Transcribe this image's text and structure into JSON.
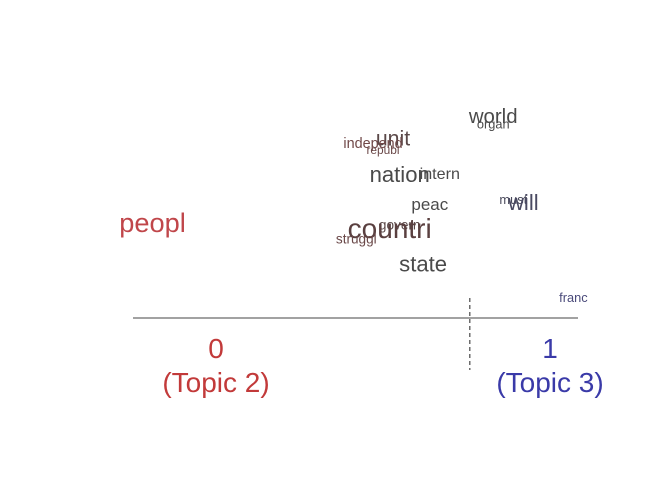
{
  "chart_data": {
    "type": "scatter",
    "title": "",
    "xlabel": "",
    "ylabel": "",
    "xlim": [
      0,
      1
    ],
    "axis": {
      "left_value": "0",
      "left_label": "(Topic 2)",
      "right_value": "1",
      "right_label": "(Topic 3)"
    },
    "reference_x": 0.76,
    "colors": {
      "low": "#c23a3a",
      "high": "#3a3aa8",
      "axis": "#444444"
    },
    "words": [
      {
        "term": "peopl",
        "x": -0.19,
        "y": 0.26,
        "size": 1.6,
        "color": "#c0464a"
      },
      {
        "term": "world",
        "x": 0.83,
        "y": 0.65,
        "size": 1.2,
        "color": "#4a4a4a"
      },
      {
        "term": "organ",
        "x": 0.83,
        "y": 0.63,
        "size": 0.75,
        "color": "#4a4a4a"
      },
      {
        "term": "unit",
        "x": 0.53,
        "y": 0.57,
        "size": 1.25,
        "color": "#5a4848"
      },
      {
        "term": "independ",
        "x": 0.47,
        "y": 0.56,
        "size": 0.85,
        "color": "#704848"
      },
      {
        "term": "republ",
        "x": 0.5,
        "y": 0.54,
        "size": 0.7,
        "color": "#6a4848"
      },
      {
        "term": "nation",
        "x": 0.55,
        "y": 0.44,
        "size": 1.3,
        "color": "#4a4a4a"
      },
      {
        "term": "intern",
        "x": 0.67,
        "y": 0.45,
        "size": 0.95,
        "color": "#4a4a4a"
      },
      {
        "term": "peac",
        "x": 0.64,
        "y": 0.34,
        "size": 1.0,
        "color": "#4a4a4a"
      },
      {
        "term": "must",
        "x": 0.89,
        "y": 0.36,
        "size": 0.75,
        "color": "#4a4a5c"
      },
      {
        "term": "will",
        "x": 0.92,
        "y": 0.34,
        "size": 1.3,
        "color": "#4a4a62"
      },
      {
        "term": "govern",
        "x": 0.55,
        "y": 0.27,
        "size": 0.8,
        "color": "#5a4848"
      },
      {
        "term": "countri",
        "x": 0.52,
        "y": 0.24,
        "size": 1.65,
        "color": "#5a4040"
      },
      {
        "term": "struggl",
        "x": 0.42,
        "y": 0.22,
        "size": 0.8,
        "color": "#6a4848"
      },
      {
        "term": "state",
        "x": 0.62,
        "y": 0.12,
        "size": 1.3,
        "color": "#4a4a4a"
      },
      {
        "term": "franc",
        "x": 1.07,
        "y": 0.01,
        "size": 0.75,
        "color": "#4a4a7a"
      }
    ]
  }
}
